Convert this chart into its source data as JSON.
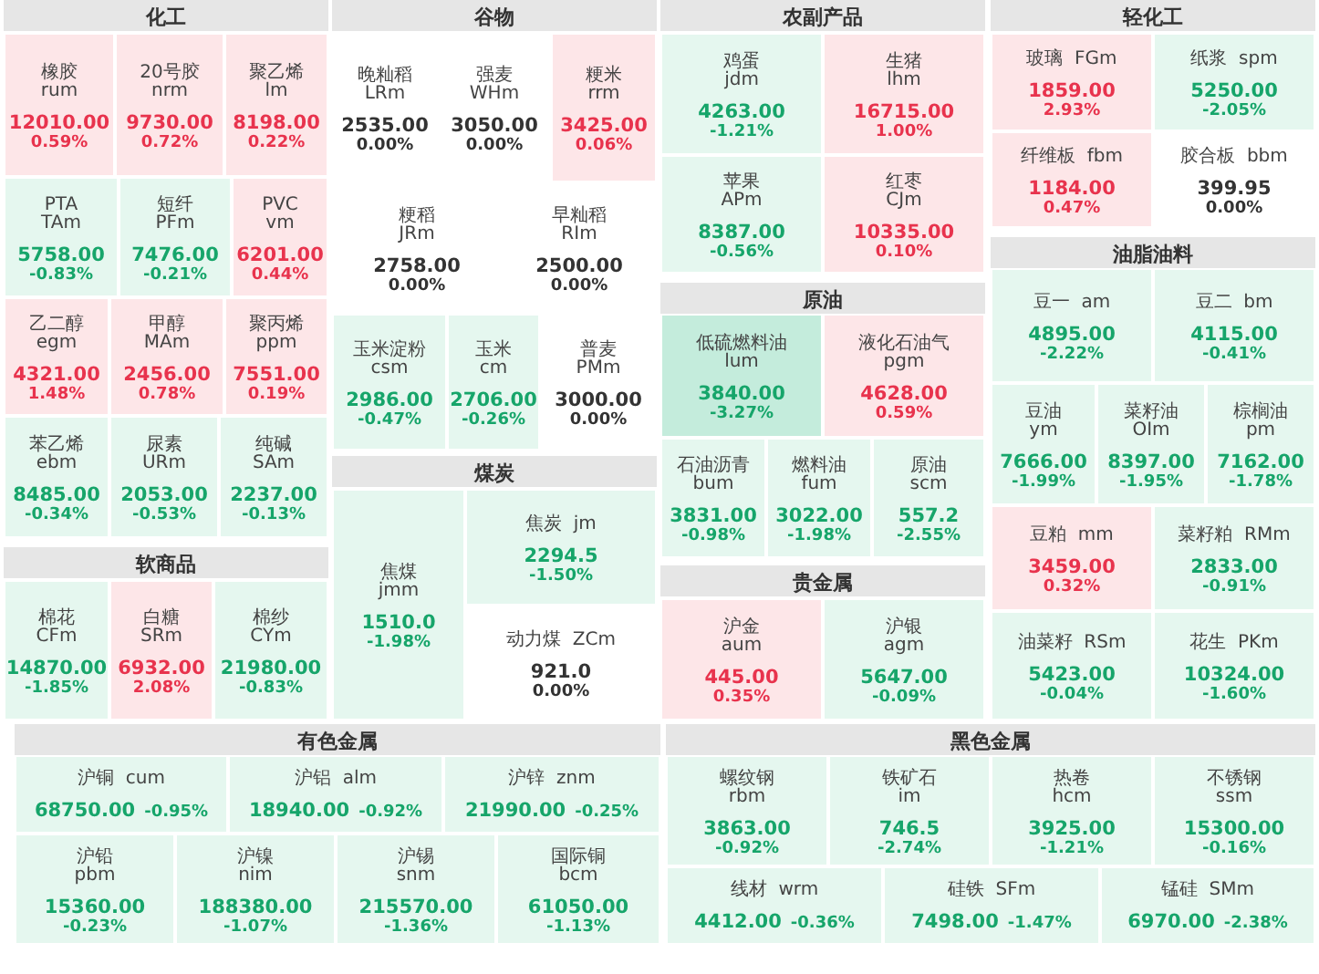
{
  "chart_data": [
    {
      "type": "other",
      "title": "化工",
      "categories": [
        "橡胶 rum",
        "20号胶 nrm",
        "聚乙烯 lm",
        "PTA TAm",
        "短纤 PFm",
        "PVC vm",
        "乙二醇 egm",
        "甲醇 MAm",
        "聚丙烯 ppm",
        "苯乙烯 ebm",
        "尿素 URm",
        "纯碱 SAm"
      ],
      "series": [
        {
          "values": [
            12010,
            9730,
            8198,
            5758,
            7476,
            6201,
            4321,
            2456,
            7551,
            8485,
            2053,
            2237
          ],
          "value_labels": [
            "12010.00",
            "9730.00",
            "8198.00",
            "5758.00",
            "7476.00",
            "6201.00",
            "4321.00",
            "2456.00",
            "7551.00",
            "8485.00",
            "2053.00",
            "2237.00"
          ],
          "colors": [
            "#fde6e8",
            "#fde6e8",
            "#fde6e8",
            "#e5f7ef",
            "#e5f7ef",
            "#fde6e8",
            "#fde6e8",
            "#fde6e8",
            "#fde6e8",
            "#e5f7ef",
            "#e5f7ef",
            "#e5f7ef"
          ]
        },
        {
          "values": [
            0.59,
            0.72,
            0.22,
            -0.83,
            -0.21,
            0.44,
            1.48,
            0.78,
            0.19,
            -0.34,
            -0.53,
            -0.13
          ],
          "value_labels": [
            "0.59%",
            "0.72%",
            "0.22%",
            "-0.83%",
            "-0.21%",
            "0.44%",
            "1.48%",
            "0.78%",
            "0.19%",
            "-0.34%",
            "-0.53%",
            "-0.13%"
          ]
        }
      ]
    },
    {
      "type": "other",
      "title": "谷物",
      "categories": [
        "晚籼稻 LRm",
        "强麦 WHm",
        "粳米 rrm",
        "粳稻 JRm",
        "早籼稻 RIm",
        "玉米淀粉 csm",
        "玉米 cm",
        "普麦 PMm"
      ],
      "series": [
        {
          "values": [
            2535,
            3050,
            3425,
            2758,
            2500,
            2986,
            2706,
            3000
          ],
          "value_labels": [
            "2535.00",
            "3050.00",
            "3425.00",
            "2758.00",
            "2500.00",
            "2986.00",
            "2706.00",
            "3000.00"
          ],
          "colors": [
            "#ffffff",
            "#ffffff",
            "#fde6e8",
            "#ffffff",
            "#ffffff",
            "#e5f7ef",
            "#e5f7ef",
            "#ffffff"
          ]
        },
        {
          "values": [
            0,
            0,
            0.06,
            0,
            0,
            -0.47,
            -0.26,
            0
          ],
          "value_labels": [
            "0.00%",
            "0.00%",
            "0.06%",
            "0.00%",
            "0.00%",
            "-0.47%",
            "-0.26%",
            "0.00%"
          ]
        }
      ]
    },
    {
      "type": "other",
      "title": "农副产品",
      "categories": [
        "鸡蛋 jdm",
        "生猪 lhm",
        "苹果 APm",
        "红枣 CJm"
      ],
      "series": [
        {
          "values": [
            4263,
            16715,
            8387,
            10335
          ],
          "value_labels": [
            "4263.00",
            "16715.00",
            "8387.00",
            "10335.00"
          ],
          "colors": [
            "#e5f7ef",
            "#fde6e8",
            "#e5f7ef",
            "#fde6e8"
          ]
        },
        {
          "values": [
            -1.21,
            1,
            -0.56,
            0.1
          ],
          "value_labels": [
            "-1.21%",
            "1.00%",
            "-0.56%",
            "0.10%"
          ]
        }
      ]
    },
    {
      "type": "other",
      "title": "轻化工",
      "categories": [
        "玻璃 FGm",
        "纸浆 spm",
        "纤维板 fbm",
        "胶合板 bbm"
      ],
      "series": [
        {
          "values": [
            1859,
            5250,
            1184,
            399.95
          ],
          "value_labels": [
            "1859.00",
            "5250.00",
            "1184.00",
            "399.95"
          ],
          "colors": [
            "#fde6e8",
            "#e5f7ef",
            "#fde6e8",
            "#ffffff"
          ]
        },
        {
          "values": [
            2.93,
            -2.05,
            0.47,
            0
          ],
          "value_labels": [
            "2.93%",
            "-2.05%",
            "0.47%",
            "0.00%"
          ]
        }
      ]
    },
    {
      "type": "other",
      "title": "原油",
      "categories": [
        "低硫燃料油 lum",
        "液化石油气 pgm",
        "石油沥青 bum",
        "燃料油 fum",
        "原油 scm"
      ],
      "series": [
        {
          "values": [
            3840,
            4628,
            3831,
            3022,
            557.2
          ],
          "value_labels": [
            "3840.00",
            "4628.00",
            "3831.00",
            "3022.00",
            "557.2"
          ],
          "colors": [
            "#c4ecdc",
            "#fde6e8",
            "#e5f7ef",
            "#e5f7ef",
            "#e5f7ef"
          ]
        },
        {
          "values": [
            -3.27,
            0.59,
            -0.98,
            -1.98,
            -2.55
          ],
          "value_labels": [
            "-3.27%",
            "0.59%",
            "-0.98%",
            "-1.98%",
            "-2.55%"
          ]
        }
      ]
    },
    {
      "type": "other",
      "title": "油脂油料",
      "categories": [
        "豆一 am",
        "豆二 bm",
        "豆油 ym",
        "菜籽油 OIm",
        "棕榈油 pm",
        "豆粕 mm",
        "菜籽粕 RMm",
        "油菜籽 RSm",
        "花生 PKm"
      ],
      "series": [
        {
          "values": [
            4895,
            4115,
            7666,
            8397,
            7162,
            3459,
            2833,
            5423,
            10324
          ],
          "value_labels": [
            "4895.00",
            "4115.00",
            "7666.00",
            "8397.00",
            "7162.00",
            "3459.00",
            "2833.00",
            "5423.00",
            "10324.00"
          ],
          "colors": [
            "#e5f7ef",
            "#e5f7ef",
            "#e5f7ef",
            "#e5f7ef",
            "#e5f7ef",
            "#fde6e8",
            "#e5f7ef",
            "#e5f7ef",
            "#e5f7ef"
          ]
        },
        {
          "values": [
            -2.22,
            -0.41,
            -1.99,
            -1.95,
            -1.78,
            0.32,
            -0.91,
            -0.04,
            -1.6
          ],
          "value_labels": [
            "-2.22%",
            "-0.41%",
            "-1.99%",
            "-1.95%",
            "-1.78%",
            "0.32%",
            "-0.91%",
            "-0.04%",
            "-1.60%"
          ]
        }
      ]
    },
    {
      "type": "other",
      "title": "软商品",
      "categories": [
        "棉花 CFm",
        "白糖 SRm",
        "棉纱 CYm"
      ],
      "series": [
        {
          "values": [
            14870,
            6932,
            21980
          ],
          "value_labels": [
            "14870.00",
            "6932.00",
            "21980.00"
          ],
          "colors": [
            "#e5f7ef",
            "#fde6e8",
            "#e5f7ef"
          ]
        },
        {
          "values": [
            -1.85,
            2.08,
            -0.83
          ],
          "value_labels": [
            "-1.85%",
            "2.08%",
            "-0.83%"
          ]
        }
      ]
    },
    {
      "type": "other",
      "title": "煤炭",
      "categories": [
        "焦煤 jmm",
        "焦炭 jm",
        "动力煤 ZCm"
      ],
      "series": [
        {
          "values": [
            1510,
            2294.5,
            921
          ],
          "value_labels": [
            "1510.0",
            "2294.5",
            "921.0"
          ],
          "colors": [
            "#e5f7ef",
            "#e5f7ef",
            "#ffffff"
          ]
        },
        {
          "values": [
            -1.98,
            -1.5,
            0
          ],
          "value_labels": [
            "-1.98%",
            "-1.50%",
            "0.00%"
          ]
        }
      ]
    },
    {
      "type": "other",
      "title": "贵金属",
      "categories": [
        "沪金 aum",
        "沪银 agm"
      ],
      "series": [
        {
          "values": [
            445,
            5647
          ],
          "value_labels": [
            "445.00",
            "5647.00"
          ],
          "colors": [
            "#fde6e8",
            "#e5f7ef"
          ]
        },
        {
          "values": [
            0.35,
            -0.09
          ],
          "value_labels": [
            "0.35%",
            "-0.09%"
          ]
        }
      ]
    },
    {
      "type": "other",
      "title": "有色金属",
      "categories": [
        "沪铜 cum",
        "沪铝 alm",
        "沪锌 znm",
        "沪铅 pbm",
        "沪镍 nim",
        "沪锡 snm",
        "国际铜 bcm"
      ],
      "series": [
        {
          "values": [
            68750,
            18940,
            21990,
            15360,
            188380,
            215570,
            61050
          ],
          "value_labels": [
            "68750.00",
            "18940.00",
            "21990.00",
            "15360.00",
            "188380.00",
            "215570.00",
            "61050.00"
          ],
          "color": "#e5f7ef"
        },
        {
          "values": [
            -0.95,
            -0.92,
            -0.25,
            -0.23,
            -1.07,
            -1.36,
            -1.13
          ],
          "value_labels": [
            "-0.95%",
            "-0.92%",
            "-0.25%",
            "-0.23%",
            "-1.07%",
            "-1.36%",
            "-1.13%"
          ]
        }
      ]
    },
    {
      "type": "other",
      "title": "黑色金属",
      "categories": [
        "螺纹钢 rbm",
        "铁矿石 im",
        "热卷 hcm",
        "不锈钢 ssm",
        "线材 wrm",
        "硅铁 SFm",
        "锰硅 SMm"
      ],
      "series": [
        {
          "values": [
            3863,
            746.5,
            3925,
            15300,
            4412,
            7498,
            6970
          ],
          "value_labels": [
            "3863.00",
            "746.5",
            "3925.00",
            "15300.00",
            "4412.00",
            "7498.00",
            "6970.00"
          ],
          "color": "#e5f7ef"
        },
        {
          "values": [
            -0.92,
            -2.74,
            -1.21,
            -0.16,
            -0.36,
            -1.47,
            -2.38
          ],
          "value_labels": [
            "-0.92%",
            "-2.74%",
            "-1.21%",
            "-0.16%",
            "-0.36%",
            "-1.47%",
            "-2.38%"
          ]
        }
      ]
    }
  ]
}
